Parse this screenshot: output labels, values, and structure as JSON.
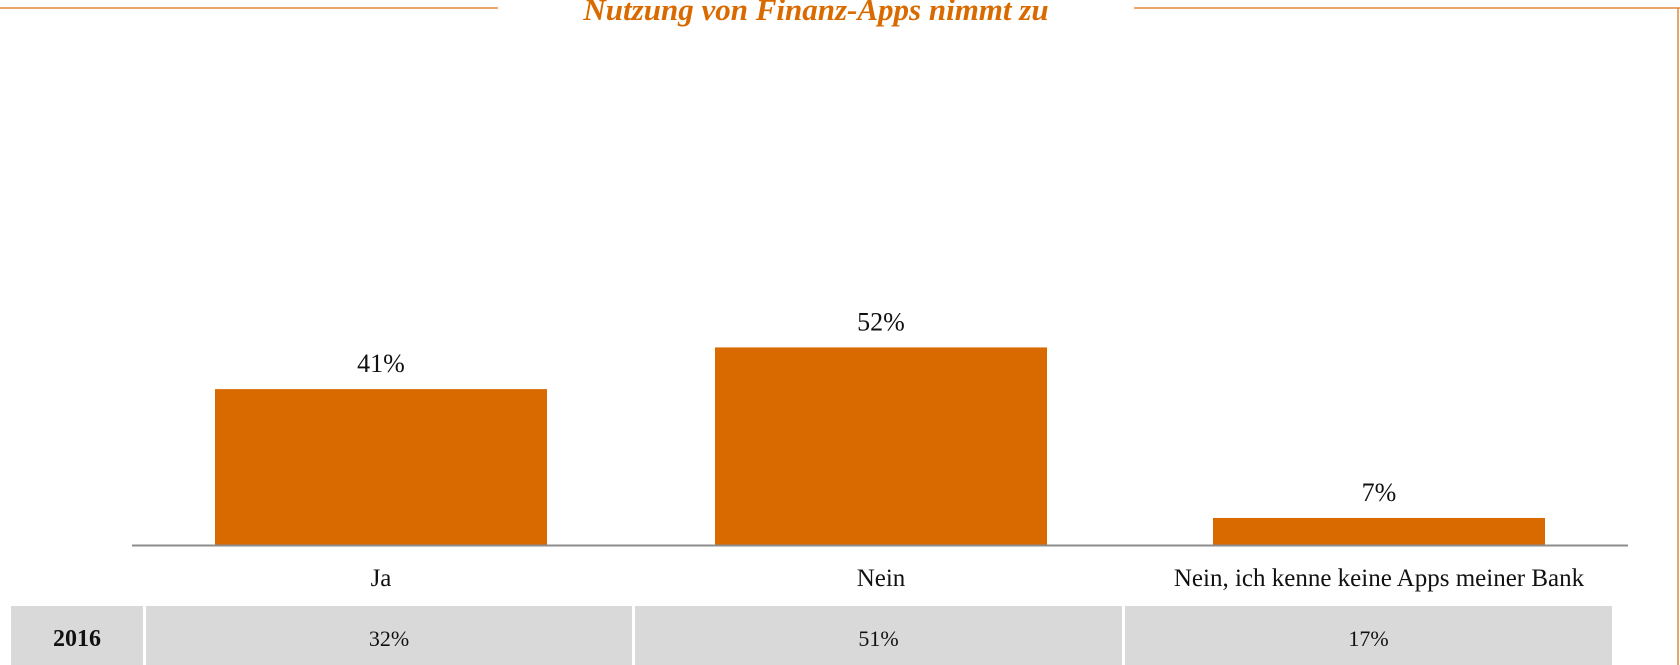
{
  "chart_data": {
    "type": "bar",
    "title": "Nutzung von Finanz-Apps nimmt zu",
    "categories": [
      "Ja",
      "Nein",
      "Nein, ich kenne keine Apps meiner Bank"
    ],
    "values": [
      41,
      52,
      7
    ],
    "value_labels": [
      "41%",
      "52%",
      "7%"
    ],
    "color": "#d96a00"
  },
  "table": {
    "rows": [
      [
        "2016",
        "32%",
        "51%",
        "17%"
      ]
    ]
  }
}
